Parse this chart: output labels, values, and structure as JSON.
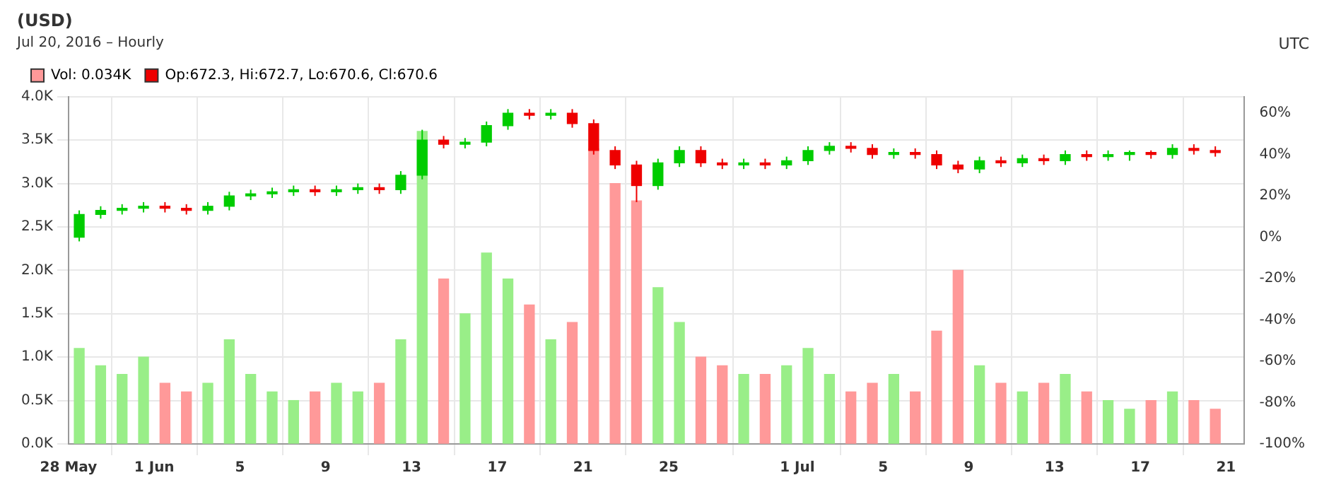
{
  "chart_data": {
    "type": "candlestick",
    "title": "(USD)",
    "subtitle": "Jul 20, 2016 – Hourly",
    "annotations": [
      "UTC"
    ],
    "xlim": [
      "2016-05-28T00:00",
      "2016-07-21T20:00"
    ],
    "xticks": [
      {
        "value": "2016-05-28",
        "label": "28 May"
      },
      {
        "value": "2016-06-01",
        "label": "1 Jun"
      },
      {
        "value": "2016-06-05",
        "label": "5"
      },
      {
        "value": "2016-06-09",
        "label": "9"
      },
      {
        "value": "2016-06-13",
        "label": "13"
      },
      {
        "value": "2016-06-17",
        "label": "17"
      },
      {
        "value": "2016-06-21",
        "label": "21"
      },
      {
        "value": "2016-06-25",
        "label": "25"
      },
      {
        "value": "2016-07-01",
        "label": "1 Jul"
      },
      {
        "value": "2016-07-05",
        "label": "5"
      },
      {
        "value": "2016-07-09",
        "label": "9"
      },
      {
        "value": "2016-07-13",
        "label": "13"
      },
      {
        "value": "2016-07-17",
        "label": "17"
      },
      {
        "value": "2016-07-21",
        "label": "21"
      }
    ],
    "ylim": [
      0,
      4
    ],
    "yticks": [
      {
        "value": 0,
        "label": "0.0K"
      },
      {
        "value": 0.5,
        "label": "0.5K"
      },
      {
        "value": 1,
        "label": "1.0K"
      },
      {
        "value": 1.5,
        "label": "1.5K"
      },
      {
        "value": 2,
        "label": "2.0K"
      },
      {
        "value": 2.5,
        "label": "2.5K"
      },
      {
        "value": 3,
        "label": "3.0K"
      },
      {
        "value": 3.5,
        "label": "3.5K"
      },
      {
        "value": 4,
        "label": "4.0K"
      }
    ],
    "y2lim": [
      -100,
      68
    ],
    "y2ticks": [
      {
        "value": -100,
        "label": "-100%"
      },
      {
        "value": -80,
        "label": "-80%"
      },
      {
        "value": -60,
        "label": "-60%"
      },
      {
        "value": -40,
        "label": "-40%"
      },
      {
        "value": -20,
        "label": "-20%"
      },
      {
        "value": 0,
        "label": "0%"
      },
      {
        "value": 20,
        "label": "20%"
      },
      {
        "value": 40,
        "label": "40%"
      },
      {
        "value": 60,
        "label": "60%"
      }
    ],
    "grid": true,
    "legend": "top left",
    "x": [
      "2016-05-28T12:00",
      "2016-05-29T12:00",
      "2016-05-30T12:00",
      "2016-05-31T12:00",
      "2016-06-01T12:00",
      "2016-06-02T12:00",
      "2016-06-03T12:00",
      "2016-06-04T12:00",
      "2016-06-05T12:00",
      "2016-06-06T12:00",
      "2016-06-07T12:00",
      "2016-06-08T12:00",
      "2016-06-09T12:00",
      "2016-06-10T12:00",
      "2016-06-11T12:00",
      "2016-06-12T12:00",
      "2016-06-13T12:00",
      "2016-06-14T12:00",
      "2016-06-15T12:00",
      "2016-06-16T12:00",
      "2016-06-17T12:00",
      "2016-06-18T12:00",
      "2016-06-19T12:00",
      "2016-06-20T12:00",
      "2016-06-21T12:00",
      "2016-06-22T12:00",
      "2016-06-23T12:00",
      "2016-06-24T12:00",
      "2016-06-25T12:00",
      "2016-06-26T12:00",
      "2016-06-27T12:00",
      "2016-06-28T12:00",
      "2016-06-29T12:00",
      "2016-06-30T12:00",
      "2016-07-01T12:00",
      "2016-07-02T12:00",
      "2016-07-03T12:00",
      "2016-07-04T12:00",
      "2016-07-05T12:00",
      "2016-07-06T12:00",
      "2016-07-07T12:00",
      "2016-07-08T12:00",
      "2016-07-09T12:00",
      "2016-07-10T12:00",
      "2016-07-11T12:00",
      "2016-07-12T12:00",
      "2016-07-13T12:00",
      "2016-07-14T12:00",
      "2016-07-15T12:00",
      "2016-07-16T12:00",
      "2016-07-17T12:00",
      "2016-07-18T12:00",
      "2016-07-19T12:00",
      "2016-07-20T12:00"
    ],
    "series": [
      {
        "type": "bar",
        "name": "Vol: 0.034K",
        "axis": "y",
        "color": "#ff9999",
        "values": [
          1.1,
          0.9,
          0.8,
          1.0,
          0.7,
          0.6,
          0.7,
          1.2,
          0.8,
          0.6,
          0.5,
          0.6,
          0.7,
          0.6,
          0.7,
          1.2,
          3.6,
          1.9,
          1.5,
          2.2,
          1.9,
          1.6,
          1.2,
          1.4,
          3.4,
          3.0,
          2.8,
          1.8,
          1.4,
          1.0,
          0.9,
          0.8,
          0.8,
          0.9,
          1.1,
          0.8,
          0.6,
          0.7,
          0.8,
          0.6,
          1.3,
          2.0,
          0.9,
          0.7,
          0.6,
          0.7,
          0.8,
          0.6,
          0.5,
          0.4,
          0.5,
          0.6,
          0.5,
          0.4
        ],
        "colors": [
          "#99ee88",
          "#99ee88",
          "#99ee88",
          "#99ee88",
          "#ff9999",
          "#ff9999",
          "#99ee88",
          "#99ee88",
          "#99ee88",
          "#99ee88",
          "#99ee88",
          "#ff9999",
          "#99ee88",
          "#99ee88",
          "#ff9999",
          "#99ee88",
          "#99ee88",
          "#ff9999",
          "#99ee88",
          "#99ee88",
          "#99ee88",
          "#ff9999",
          "#99ee88",
          "#ff9999",
          "#ff9999",
          "#ff9999",
          "#ff9999",
          "#99ee88",
          "#99ee88",
          "#ff9999",
          "#ff9999",
          "#99ee88",
          "#ff9999",
          "#99ee88",
          "#99ee88",
          "#99ee88",
          "#ff9999",
          "#ff9999",
          "#99ee88",
          "#ff9999",
          "#ff9999",
          "#ff9999",
          "#99ee88",
          "#ff9999",
          "#99ee88",
          "#ff9999",
          "#99ee88",
          "#ff9999",
          "#99ee88",
          "#99ee88",
          "#ff9999",
          "#99ee88",
          "#ff9999",
          "#ff9999"
        ]
      },
      {
        "name": "Op:672.3, Hi:672.7, Lo:670.6, Cl:670.6",
        "axis": "y2",
        "color": "#ee0000",
        "ohlc": [
          [
            0,
            13,
            -2,
            11
          ],
          [
            11,
            15,
            9,
            13
          ],
          [
            13,
            16,
            11,
            14
          ],
          [
            14,
            17,
            12,
            15
          ],
          [
            15,
            17,
            12,
            14
          ],
          [
            14,
            16,
            11,
            13
          ],
          [
            13,
            17,
            11,
            15
          ],
          [
            15,
            22,
            13,
            20
          ],
          [
            20,
            23,
            18,
            21
          ],
          [
            21,
            24,
            19,
            22
          ],
          [
            22,
            25,
            20,
            23
          ],
          [
            23,
            25,
            20,
            22
          ],
          [
            22,
            25,
            20,
            23
          ],
          [
            23,
            26,
            21,
            24
          ],
          [
            24,
            26,
            21,
            23
          ],
          [
            23,
            32,
            21,
            30
          ],
          [
            30,
            52,
            28,
            47
          ],
          [
            47,
            49,
            43,
            45
          ],
          [
            45,
            48,
            43,
            46
          ],
          [
            46,
            56,
            44,
            54
          ],
          [
            54,
            62,
            52,
            60
          ],
          [
            60,
            62,
            57,
            59
          ],
          [
            59,
            62,
            57,
            60
          ],
          [
            60,
            62,
            53,
            55
          ],
          [
            55,
            57,
            40,
            42
          ],
          [
            42,
            44,
            33,
            35
          ],
          [
            35,
            37,
            17,
            25
          ],
          [
            25,
            38,
            23,
            36
          ],
          [
            36,
            44,
            34,
            42
          ],
          [
            42,
            44,
            34,
            36
          ],
          [
            36,
            38,
            33,
            35
          ],
          [
            35,
            38,
            33,
            36
          ],
          [
            36,
            38,
            33,
            35
          ],
          [
            35,
            39,
            33,
            37
          ],
          [
            37,
            44,
            35,
            42
          ],
          [
            42,
            46,
            40,
            44
          ],
          [
            44,
            46,
            41,
            43
          ],
          [
            43,
            45,
            38,
            40
          ],
          [
            40,
            43,
            38,
            41
          ],
          [
            41,
            43,
            38,
            40
          ],
          [
            40,
            42,
            33,
            35
          ],
          [
            35,
            37,
            31,
            33
          ],
          [
            33,
            39,
            31,
            37
          ],
          [
            37,
            39,
            34,
            36
          ],
          [
            36,
            40,
            34,
            38
          ],
          [
            38,
            40,
            35,
            37
          ],
          [
            37,
            42,
            35,
            40
          ],
          [
            40,
            42,
            37,
            39
          ],
          [
            39,
            42,
            37,
            40
          ],
          [
            40,
            42,
            37,
            41
          ],
          [
            41,
            42,
            38,
            40
          ],
          [
            40,
            45,
            38,
            43
          ],
          [
            43,
            45,
            40,
            42
          ],
          [
            42,
            44,
            39,
            41
          ]
        ],
        "colors": [
          "#00cc00",
          "#00cc00",
          "#00cc00",
          "#00cc00",
          "#ee0000",
          "#ee0000",
          "#00cc00",
          "#00cc00",
          "#00cc00",
          "#00cc00",
          "#00cc00",
          "#ee0000",
          "#00cc00",
          "#00cc00",
          "#ee0000",
          "#00cc00",
          "#00cc00",
          "#ee0000",
          "#00cc00",
          "#00cc00",
          "#00cc00",
          "#ee0000",
          "#00cc00",
          "#ee0000",
          "#ee0000",
          "#ee0000",
          "#ee0000",
          "#00cc00",
          "#00cc00",
          "#ee0000",
          "#ee0000",
          "#00cc00",
          "#ee0000",
          "#00cc00",
          "#00cc00",
          "#00cc00",
          "#ee0000",
          "#ee0000",
          "#00cc00",
          "#ee0000",
          "#ee0000",
          "#ee0000",
          "#00cc00",
          "#ee0000",
          "#00cc00",
          "#ee0000",
          "#00cc00",
          "#ee0000",
          "#00cc00",
          "#00cc00",
          "#ee0000",
          "#00cc00",
          "#ee0000",
          "#ee0000"
        ]
      }
    ]
  }
}
